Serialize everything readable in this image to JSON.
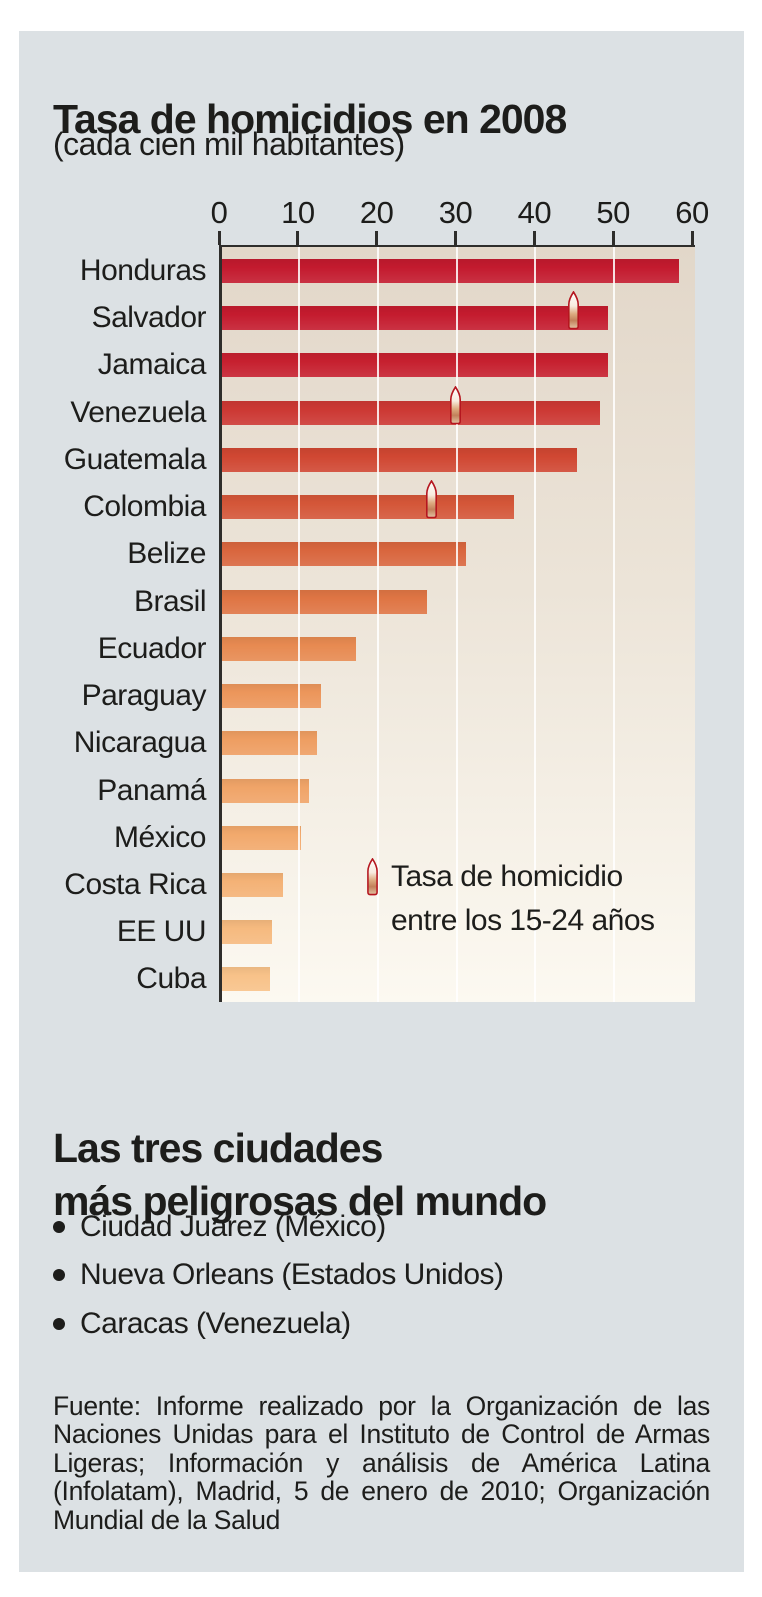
{
  "header": {
    "title": "Tasa de homicidios en 2008",
    "subtitle": "(cada cien mil habitantes)"
  },
  "chart_data": {
    "type": "bar",
    "orientation": "horizontal",
    "title": "Tasa de homicidios en 2008",
    "unit_note": "cada cien mil habitantes",
    "xlim": [
      0,
      60
    ],
    "x_ticks": [
      0,
      10,
      20,
      30,
      40,
      50,
      60
    ],
    "grid": true,
    "categories": [
      "Honduras",
      "Salvador",
      "Jamaica",
      "Venezuela",
      "Guatemala",
      "Colombia",
      "Belize",
      "Brasil",
      "Ecuador",
      "Paraguay",
      "Nicaragua",
      "Panamá",
      "México",
      "Costa Rica",
      "EE UU",
      "Cuba"
    ],
    "values": [
      58,
      49,
      49,
      48,
      45,
      37,
      31,
      26,
      17,
      12.5,
      12,
      11,
      10,
      7.7,
      6.3,
      6.1
    ],
    "youth_rate_15_24": [
      null,
      45,
      null,
      30,
      null,
      27,
      null,
      null,
      null,
      null,
      null,
      null,
      null,
      null,
      null,
      null
    ],
    "bar_colors": [
      "#c31a2e",
      "#c41b2e",
      "#c6202f",
      "#cc3833",
      "#d04732",
      "#d45638",
      "#d9663e",
      "#df7544",
      "#e78a51",
      "#ec965b",
      "#ee9e62",
      "#f0a468",
      "#f2a96c",
      "#f4b276",
      "#f6ba7f",
      "#f8c289"
    ],
    "legend_position": "inside-bottom-right"
  },
  "legend": {
    "line1": "Tasa de homicidio",
    "line2": "entre los 15-24 años"
  },
  "cities": {
    "title_line1": "Las tres ciudades",
    "title_line2": "más peligrosas del mundo",
    "items": [
      "Ciudad Juárez (México)",
      "Nueva Orleans (Estados Unidos)",
      "Caracas (Venezuela)"
    ]
  },
  "source": {
    "lines": [
      "Fuente: Informe realizado por la Organización de las",
      "Naciones Unidas para el Instituto de Control de Armas",
      "Ligeras; Información y análisis de América Latina",
      "(Infolatam), Madrid, 5 de enero de 2010; Organización",
      "Mundial de la Salud"
    ]
  },
  "colors": {
    "panel": "#dce1e4",
    "plot_bg_top": "#e2d7c9",
    "plot_bg_bottom": "#fcf9f1",
    "axis": "#2e2d2b",
    "text": "#1d1d1b",
    "bullet_stroke": "#b5161f"
  }
}
